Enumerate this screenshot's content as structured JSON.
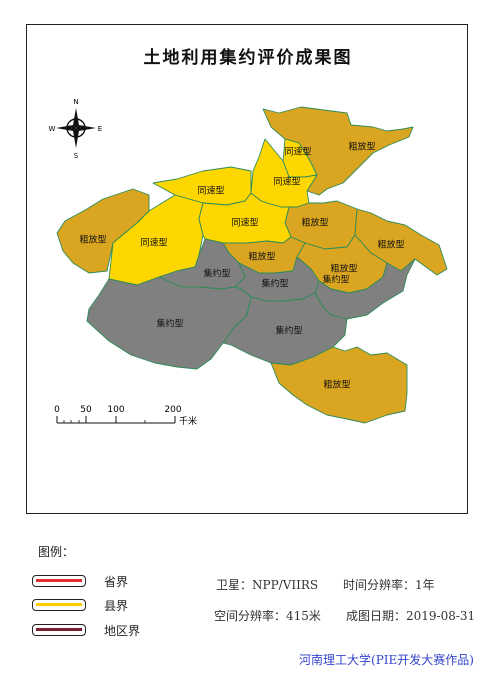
{
  "map": {
    "title": "土地利用集约评价成果图",
    "compass": {
      "n": "N",
      "s": "S",
      "e": "E",
      "w": "W"
    },
    "scale_bar": {
      "ticks": [
        "0",
        "50",
        "100",
        "200"
      ],
      "unit": "千米"
    },
    "colors": {
      "粗放型": "#daa520",
      "同速型": "#ffd700",
      "集约型": "#808080",
      "district_border": "#2e8b57",
      "outline": "#333333"
    },
    "regions": [
      {
        "type": "粗放型",
        "label": "粗放型"
      },
      {
        "type": "同速型",
        "label": "同速型"
      },
      {
        "type": "同速型",
        "label": "同速型"
      },
      {
        "type": "粗放型",
        "label": "粗放型"
      },
      {
        "type": "同速型",
        "label": "同速型"
      },
      {
        "type": "同速型",
        "label": "同速型"
      },
      {
        "type": "粗放型",
        "label": "粗放型"
      },
      {
        "type": "粗放型",
        "label": "粗放型"
      },
      {
        "type": "同速型",
        "label": "同速型"
      },
      {
        "type": "粗放型",
        "label": "粗放型"
      },
      {
        "type": "集约型",
        "label": "集约型"
      },
      {
        "type": "粗放型",
        "label": "粗放型"
      },
      {
        "type": "集约型",
        "label": "集约型"
      },
      {
        "type": "集约型",
        "label": "集约型"
      },
      {
        "type": "集约型",
        "label": "集约型"
      },
      {
        "type": "集约型",
        "label": "集约型"
      },
      {
        "type": "粗放型",
        "label": "粗放型"
      }
    ]
  },
  "legend": {
    "heading": "图例：",
    "items": [
      {
        "label": "省界",
        "color": "#e03030"
      },
      {
        "label": "县界",
        "color": "#ffcc00"
      },
      {
        "label": "地区界",
        "color": "#7a2030"
      }
    ]
  },
  "meta": {
    "satellite": "卫星：NPP/VIIRS",
    "temporal_resolution": "时间分辨率：1年",
    "spatial_resolution": "空间分辨率：415米",
    "map_date": "成图日期：2019-08-31"
  },
  "credit": "河南理工大学(PIE开发大赛作品)"
}
